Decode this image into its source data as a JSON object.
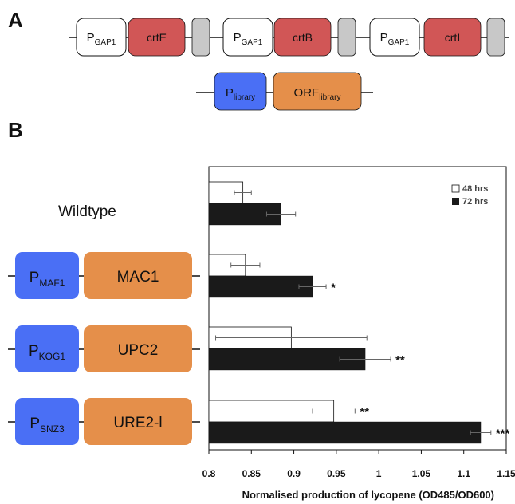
{
  "panels": {
    "a": "A",
    "b": "B"
  },
  "construct": {
    "units": [
      {
        "promoter": {
          "main": "P",
          "sub": "GAP1"
        },
        "gene": "crtE"
      },
      {
        "promoter": {
          "main": "P",
          "sub": "GAP1"
        },
        "gene": "crtB"
      },
      {
        "promoter": {
          "main": "P",
          "sub": "GAP1"
        },
        "gene": "crtI"
      }
    ],
    "library": {
      "promoter": {
        "main": "P",
        "sub": "library"
      },
      "orf": {
        "main": "ORF",
        "sub": "library"
      }
    }
  },
  "rows": [
    {
      "label": "Wildtype"
    },
    {
      "promoter": {
        "main": "P",
        "sub": "MAF1"
      },
      "gene": "MAC1"
    },
    {
      "promoter": {
        "main": "P",
        "sub": "KOG1"
      },
      "gene": "UPC2"
    },
    {
      "promoter": {
        "main": "P",
        "sub": "SNZ3"
      },
      "gene": "URE2-l"
    }
  ],
  "colors": {
    "promoter_white": "#ffffff",
    "gene_red": "#d15656",
    "terminator_gray": "#c8c8c8",
    "library_promoter_blue": "#4a6ff5",
    "orf_orange": "#e58f4a",
    "bar_48": "#ffffff",
    "bar_72": "#1a1a1a"
  },
  "chart_data": {
    "type": "bar",
    "orientation": "horizontal",
    "categories": [
      "Wildtype",
      "MAC1",
      "UPC2",
      "URE2-l"
    ],
    "series": [
      {
        "name": "48 hrs",
        "values": [
          0.84,
          0.843,
          0.897,
          0.947
        ],
        "errors": [
          0.01,
          0.017,
          0.089,
          0.025
        ],
        "significance": [
          "",
          "",
          "",
          "**"
        ]
      },
      {
        "name": "72 hrs",
        "values": [
          0.885,
          0.922,
          0.984,
          1.12
        ],
        "errors": [
          0.017,
          0.016,
          0.03,
          0.012
        ],
        "significance": [
          "",
          "*",
          "**",
          "***"
        ]
      }
    ],
    "xlim": [
      0.8,
      1.15
    ],
    "xticks": [
      "0.8",
      "0.85",
      "0.9",
      "0.95",
      "1",
      "1.05",
      "1.1",
      "1.15"
    ],
    "xlabel": "Normalised production of lycopene (OD485/OD600)",
    "legend_position": "top-right",
    "grid": false
  }
}
